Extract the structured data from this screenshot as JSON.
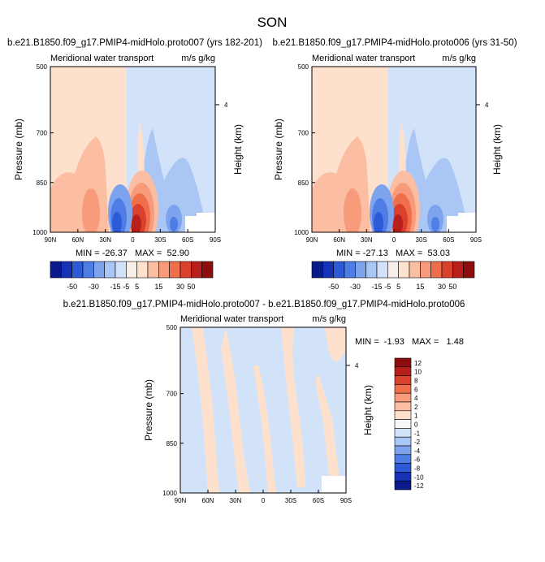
{
  "figure": {
    "title": "SON"
  },
  "colors": {
    "cb_main": [
      "#0a1a8a",
      "#1633b8",
      "#2d5ad6",
      "#4f7de6",
      "#7ea3ee",
      "#aac6f4",
      "#d2e3f9",
      "#f7eee7",
      "#fde1cd",
      "#fbbea3",
      "#f79b7a",
      "#ef6f4d",
      "#d9412c",
      "#b81f1a",
      "#8c0d0d"
    ],
    "cb_diff": [
      "#0a1a8a",
      "#1633b8",
      "#2d5ad6",
      "#4f7de6",
      "#7ea3ee",
      "#aac6f4",
      "#d2e3f9",
      "#f7f7f7",
      "#fde1cd",
      "#fbbea3",
      "#f79b7a",
      "#ef6f4d",
      "#d9412c",
      "#b81f1a",
      "#8c0d0d"
    ]
  },
  "chart_data": [
    {
      "type": "heatmap",
      "title": "b.e21.B1850.f09_g17.PMIP4-midHolo.proto007 (yrs 182-201)",
      "subtitle_left": "Meridional water transport",
      "subtitle_right": "m/s g/kg",
      "ylabel": "Pressure (mb)",
      "ylabel_right": "Height (km)",
      "xticks": [
        "90N",
        "60N",
        "30N",
        "0",
        "30S",
        "60S",
        "90S"
      ],
      "yticks": [
        "500",
        "700",
        "850",
        "1000"
      ],
      "yticks_right": [
        "4"
      ],
      "stats": "MIN = -26.37   MAX =  52.90",
      "colorbar_labels": [
        "-50",
        "-30",
        "-15",
        "-5",
        "5",
        "15",
        "30",
        "50"
      ]
    },
    {
      "type": "heatmap",
      "title": "b.e21.B1850.f09_g17.PMIP4-midHolo.proto006 (yrs 31-50)",
      "subtitle_left": "Meridional water transport",
      "subtitle_right": "m/s g/kg",
      "ylabel": "Pressure (mb)",
      "ylabel_right": "Height (km)",
      "xticks": [
        "90N",
        "60N",
        "30N",
        "0",
        "30S",
        "60S",
        "90S"
      ],
      "yticks": [
        "500",
        "700",
        "850",
        "1000"
      ],
      "yticks_right": [
        "4"
      ],
      "stats": "MIN = -27.13   MAX =  53.03",
      "colorbar_labels": [
        "-50",
        "-30",
        "-15",
        "-5",
        "5",
        "15",
        "30",
        "50"
      ]
    },
    {
      "type": "heatmap",
      "title": "b.e21.B1850.f09_g17.PMIP4-midHolo.proto007 - b.e21.B1850.f09_g17.PMIP4-midHolo.proto006",
      "subtitle_left": "Meridional water transport",
      "subtitle_right": "m/s g/kg",
      "ylabel": "Pressure (mb)",
      "ylabel_right": "Height (km)",
      "xticks": [
        "90N",
        "60N",
        "30N",
        "0",
        "30S",
        "60S",
        "90S"
      ],
      "yticks": [
        "500",
        "700",
        "850",
        "1000"
      ],
      "yticks_right": [
        "4"
      ],
      "stats": "MIN =  -1.93   MAX =   1.48",
      "colorbar_labels": [
        "12",
        "10",
        "8",
        "6",
        "4",
        "2",
        "1",
        "0",
        "-1",
        "-2",
        "-4",
        "-6",
        "-8",
        "-10",
        "-12"
      ]
    }
  ]
}
